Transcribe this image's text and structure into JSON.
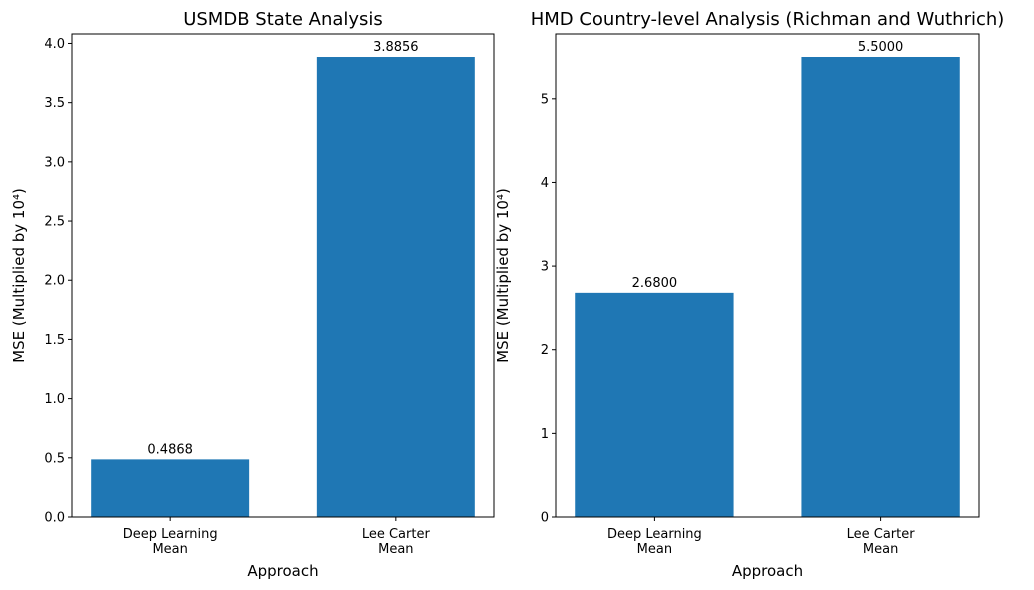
{
  "chart_data": [
    {
      "type": "bar",
      "title": "USMDB State Analysis",
      "xlabel": "Approach",
      "ylabel": "MSE (Multiplied by 10⁴)",
      "categories": [
        [
          "Deep Learning",
          "Mean"
        ],
        [
          "Lee Carter",
          "Mean"
        ]
      ],
      "values": [
        0.4868,
        3.8856
      ],
      "value_labels": [
        "0.4868",
        "3.8856"
      ],
      "ylim": [
        0,
        4.08
      ],
      "yticks": [
        0.0,
        0.5,
        1.0,
        1.5,
        2.0,
        2.5,
        3.0,
        3.5,
        4.0
      ],
      "ytick_labels": [
        "0.0",
        "0.5",
        "1.0",
        "1.5",
        "2.0",
        "2.5",
        "3.0",
        "3.5",
        "4.0"
      ],
      "color": "#1f77b4",
      "grid": false,
      "legend": "none"
    },
    {
      "type": "bar",
      "title": "HMD Country-level Analysis (Richman and Wuthrich)",
      "xlabel": "Approach",
      "ylabel": "MSE (Multiplied by 10⁴)",
      "categories": [
        [
          "Deep Learning",
          "Mean"
        ],
        [
          "Lee Carter",
          "Mean"
        ]
      ],
      "values": [
        2.68,
        5.5
      ],
      "value_labels": [
        "2.6800",
        "5.5000"
      ],
      "ylim": [
        0,
        5.775
      ],
      "yticks": [
        0,
        1,
        2,
        3,
        4,
        5
      ],
      "ytick_labels": [
        "0",
        "1",
        "2",
        "3",
        "4",
        "5"
      ],
      "color": "#1f77b4",
      "grid": false,
      "legend": "none"
    }
  ]
}
